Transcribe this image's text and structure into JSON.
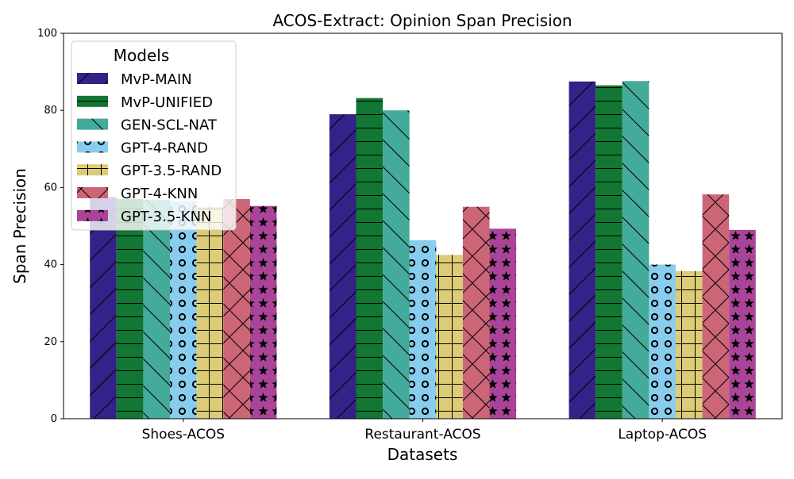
{
  "chart_data": {
    "type": "bar",
    "title": "ACOS-Extract: Opinion Span Precision",
    "xlabel": "Datasets",
    "ylabel": "Span Precision",
    "ylim": [
      0,
      100
    ],
    "yticks": [
      "0",
      "20",
      "40",
      "60",
      "80",
      "100"
    ],
    "categories": [
      "Shoes-ACOS",
      "Restaurant-ACOS",
      "Laptop-ACOS"
    ],
    "legend": {
      "title": "Models",
      "placement": "top-left"
    },
    "grid": false,
    "series": [
      {
        "name": "MvP-MAIN",
        "color": "#332288",
        "hatch": "diagonal-forward",
        "values": [
          57.5,
          79.0,
          87.5
        ]
      },
      {
        "name": "MvP-UNIFIED",
        "color": "#117733",
        "hatch": "horizontal",
        "values": [
          57.0,
          83.2,
          86.5
        ]
      },
      {
        "name": "GEN-SCL-NAT",
        "color": "#44AA99",
        "hatch": "diagonal-back",
        "values": [
          56.8,
          80.0,
          87.6
        ]
      },
      {
        "name": "GPT-4-RAND",
        "color": "#88CCEE",
        "hatch": "circles",
        "values": [
          56.5,
          46.3,
          40.0
        ]
      },
      {
        "name": "GPT-3.5-RAND",
        "color": "#DDCC77",
        "hatch": "grid",
        "values": [
          55.0,
          42.5,
          38.3
        ]
      },
      {
        "name": "GPT-4-KNN",
        "color": "#CC6677",
        "hatch": "crosshatch",
        "values": [
          57.0,
          55.0,
          58.2
        ]
      },
      {
        "name": "GPT-3.5-KNN",
        "color": "#AA4499",
        "hatch": "stars",
        "values": [
          55.2,
          49.3,
          49.0
        ]
      }
    ]
  }
}
